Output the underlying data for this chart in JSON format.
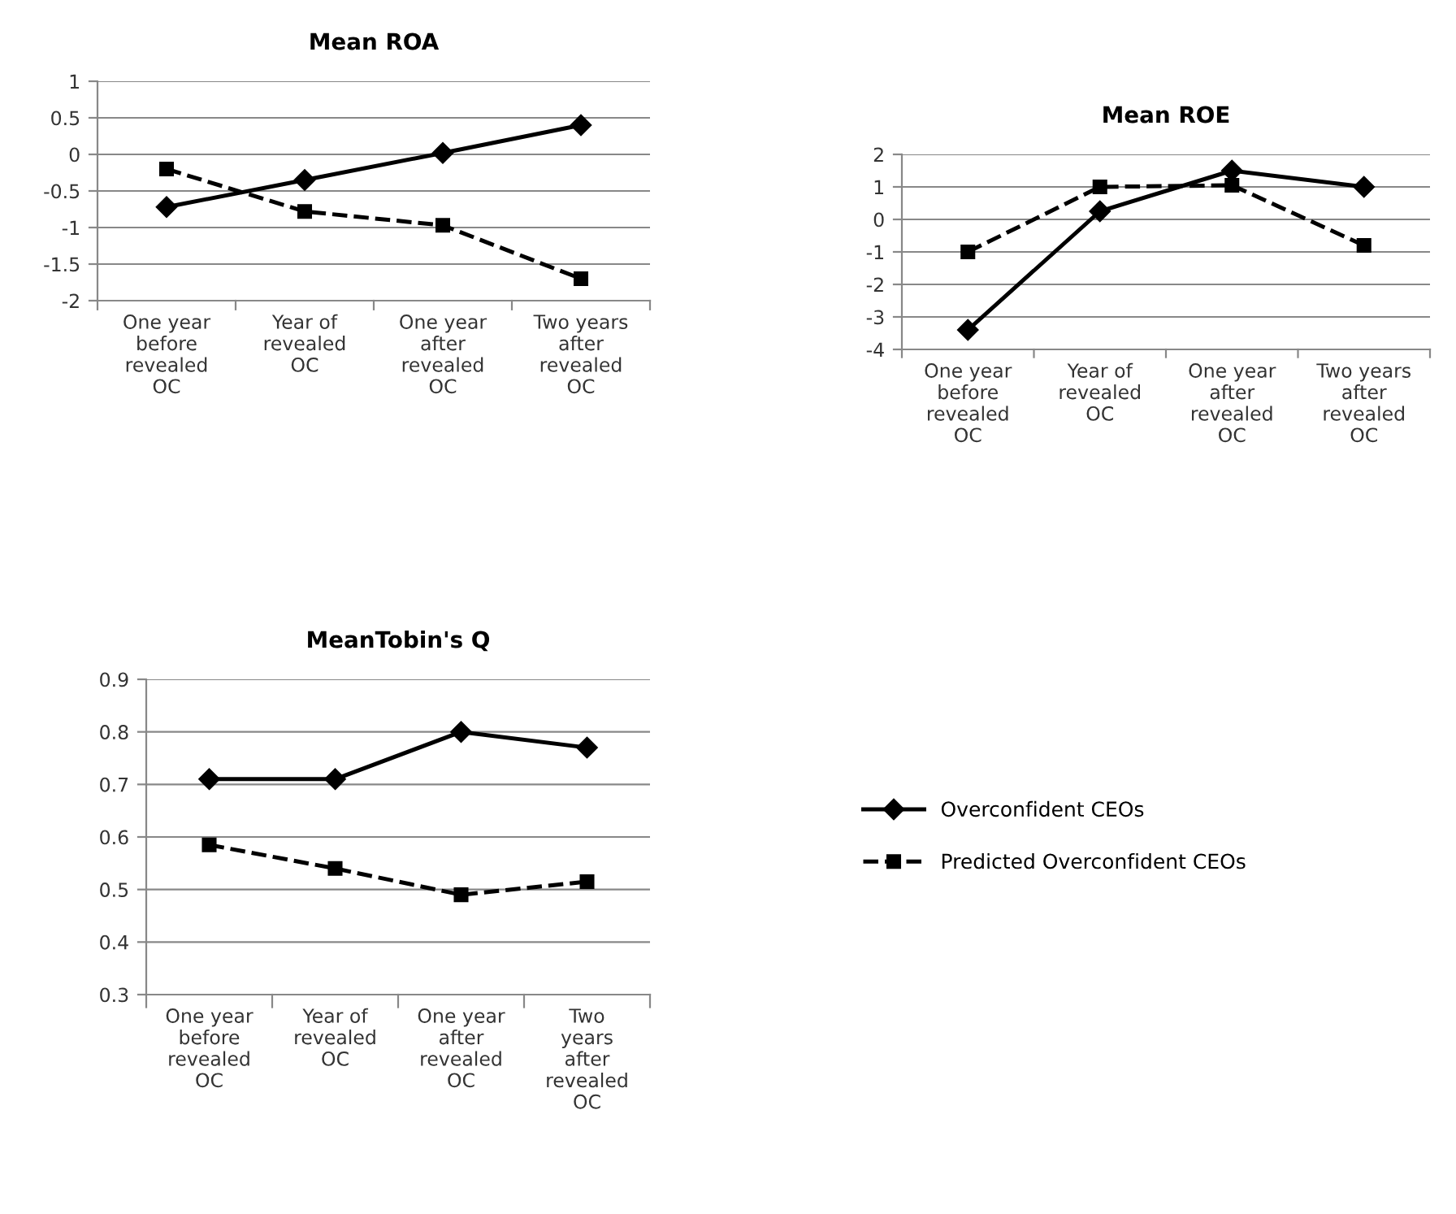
{
  "chart_data": [
    {
      "type": "line",
      "title": "Mean ROA",
      "categories": [
        "One year\nbefore\nrevealed\nOC",
        "Year of\nrevealed\nOC",
        "One year\nafter\nrevealed\nOC",
        "Two years\nafter\nrevealed\nOC"
      ],
      "series": [
        {
          "color": "#000000",
          "values": [
            -0.72,
            -0.35,
            0.02,
            0.4
          ],
          "marker": "diamond",
          "line_style": "solid"
        },
        {
          "color": "#000000",
          "values": [
            -0.2,
            -0.78,
            -0.97,
            -1.7
          ],
          "marker": "square",
          "line_style": "dashed"
        }
      ],
      "ylim": [
        -2,
        1
      ],
      "yticks": [
        {
          "value": -2,
          "label": "-2"
        },
        {
          "value": -1.5,
          "label": "-1.5"
        },
        {
          "value": -1,
          "label": "-1"
        },
        {
          "value": -0.5,
          "label": "-0.5"
        },
        0,
        0.5,
        1
      ],
      "grid": "y"
    },
    {
      "type": "line",
      "title": "Mean ROE",
      "categories": [
        "One year\nbefore\nrevealed\nOC",
        "Year of\nrevealed\nOC",
        "One year\nafter\nrevealed\nOC",
        "Two years\nafter\nrevealed\nOC"
      ],
      "series": [
        {
          "color": "#000000",
          "values": [
            -3.4,
            0.25,
            1.5,
            1.0
          ],
          "marker": "diamond",
          "line_style": "solid"
        },
        {
          "color": "#000000",
          "values": [
            -1.0,
            1.0,
            1.05,
            -0.8
          ],
          "marker": "square",
          "line_style": "dashed"
        }
      ],
      "ylim": [
        -4,
        2
      ],
      "yticks": [
        {
          "value": -4,
          "label": "-4"
        },
        {
          "value": -3,
          "label": "-3"
        },
        {
          "value": -2,
          "label": "-2"
        },
        {
          "value": -1,
          "label": "-1"
        },
        0,
        1,
        2
      ],
      "grid": "y"
    },
    {
      "type": "line",
      "title": "MeanTobin's Q",
      "categories": [
        "One year\nbefore\nrevealed\nOC",
        "Year of\nrevealed\nOC",
        "One year\nafter\nrevealed\nOC",
        "Two\nyears\nafter\nrevealed\nOC"
      ],
      "series": [
        {
          "name": "Overconfident CEOs",
          "color": "#000000",
          "values": [
            0.71,
            0.71,
            0.8,
            0.77
          ],
          "marker": "diamond",
          "line_style": "solid"
        },
        {
          "name": "Predicted Overconfident CEOs",
          "color": "#000000",
          "values": [
            0.585,
            0.54,
            0.49,
            0.515
          ],
          "marker": "square",
          "line_style": "dashed"
        }
      ],
      "ylim": [
        0.3,
        0.9
      ],
      "yticks": [
        0.3,
        0.4,
        0.5,
        0.6,
        0.7,
        0.8,
        0.9
      ],
      "grid": "y",
      "legend": "right"
    }
  ]
}
